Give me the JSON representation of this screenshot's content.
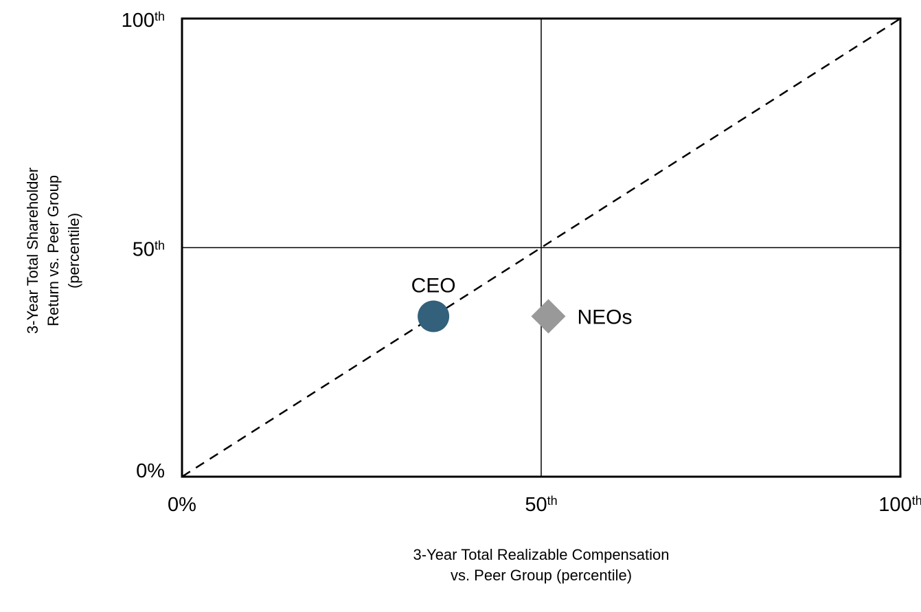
{
  "chart_data": {
    "type": "scatter",
    "xlabel": [
      "3-Year Total Realizable Compensation",
      "vs. Peer Group (percentile)"
    ],
    "ylabel": [
      "3-Year Total Shareholder",
      "Return vs. Peer Group",
      "(percentile)"
    ],
    "xlim": [
      0,
      100
    ],
    "ylim": [
      0,
      100
    ],
    "xticks": [
      {
        "value": 0,
        "label": "0%"
      },
      {
        "value": 50,
        "label": "50th"
      },
      {
        "value": 100,
        "label": "100th"
      }
    ],
    "yticks": [
      {
        "value": 0,
        "label": "0%"
      },
      {
        "value": 50,
        "label": "50th"
      },
      {
        "value": 100,
        "label": "100th"
      }
    ],
    "grid": true,
    "diagonal": true,
    "series": [
      {
        "name": "CEO",
        "color": "#33607a",
        "marker": "circle",
        "x": [
          35
        ],
        "values": [
          35
        ]
      },
      {
        "name": "NEOs",
        "color": "#999999",
        "marker": "diamond",
        "x": [
          51
        ],
        "values": [
          35
        ]
      }
    ]
  }
}
